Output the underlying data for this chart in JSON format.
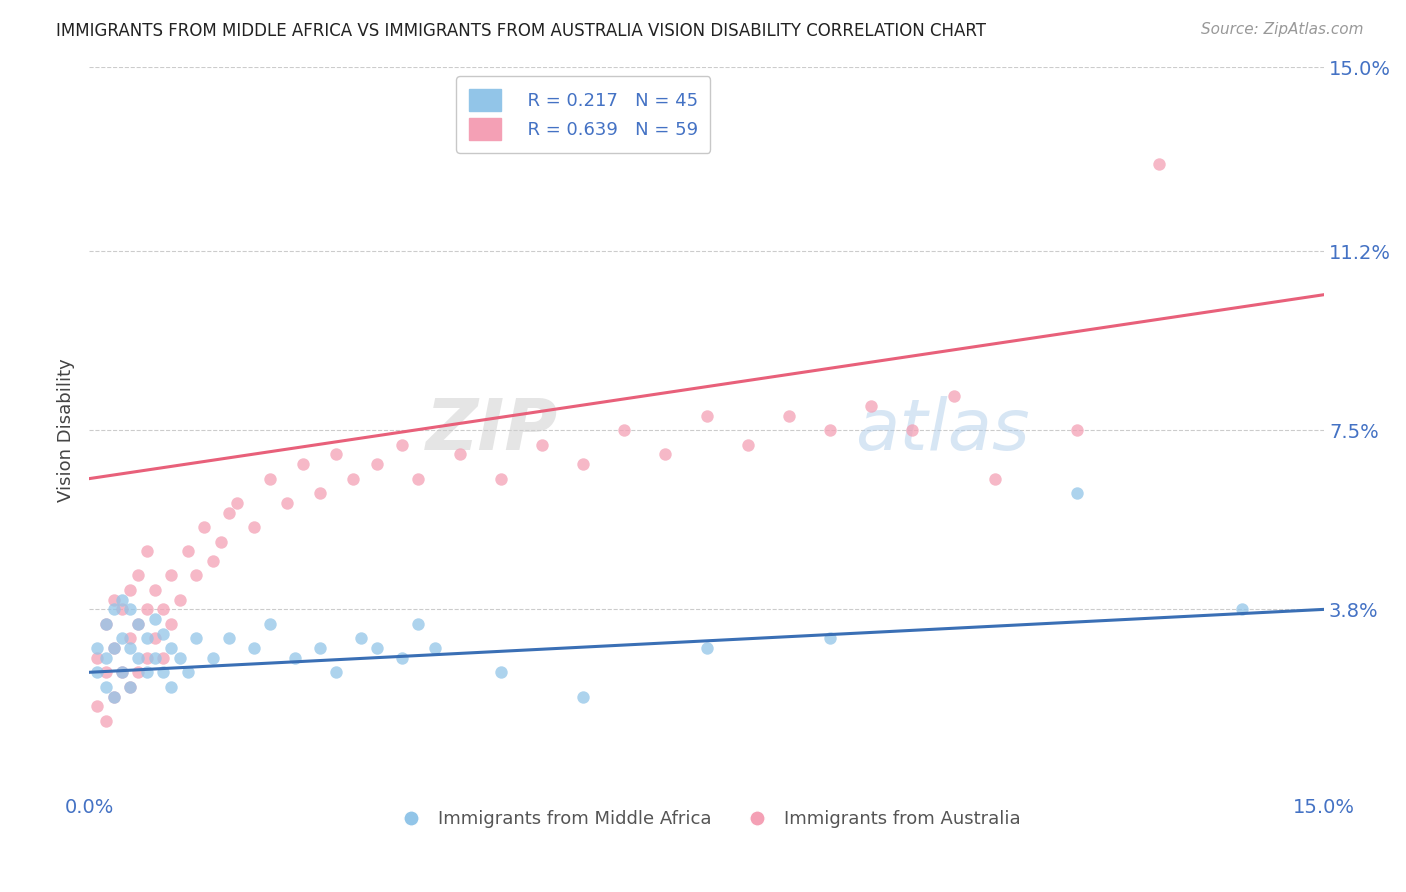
{
  "title": "IMMIGRANTS FROM MIDDLE AFRICA VS IMMIGRANTS FROM AUSTRALIA VISION DISABILITY CORRELATION CHART",
  "source": "Source: ZipAtlas.com",
  "ylabel": "Vision Disability",
  "xlim": [
    0.0,
    0.15
  ],
  "ylim": [
    0.0,
    0.15
  ],
  "yticks": [
    0.038,
    0.075,
    0.112,
    0.15
  ],
  "ytick_labels": [
    "3.8%",
    "7.5%",
    "11.2%",
    "15.0%"
  ],
  "blue_R": 0.217,
  "blue_N": 45,
  "pink_R": 0.639,
  "pink_N": 59,
  "blue_color": "#92C5E8",
  "pink_color": "#F4A0B5",
  "blue_line_color": "#3A6FB5",
  "pink_line_color": "#E8607A",
  "legend_label_blue": "Immigrants from Middle Africa",
  "legend_label_pink": "Immigrants from Australia",
  "blue_line": [
    0.0,
    0.15,
    0.025,
    0.038
  ],
  "pink_line": [
    0.0,
    0.15,
    0.065,
    0.103
  ],
  "blue_scatter_x": [
    0.001,
    0.001,
    0.002,
    0.002,
    0.002,
    0.003,
    0.003,
    0.003,
    0.004,
    0.004,
    0.004,
    0.005,
    0.005,
    0.005,
    0.006,
    0.006,
    0.007,
    0.007,
    0.008,
    0.008,
    0.009,
    0.009,
    0.01,
    0.01,
    0.011,
    0.012,
    0.013,
    0.015,
    0.017,
    0.02,
    0.022,
    0.025,
    0.028,
    0.03,
    0.033,
    0.035,
    0.038,
    0.04,
    0.042,
    0.05,
    0.06,
    0.075,
    0.09,
    0.12,
    0.14
  ],
  "blue_scatter_y": [
    0.025,
    0.03,
    0.022,
    0.028,
    0.035,
    0.02,
    0.03,
    0.038,
    0.025,
    0.032,
    0.04,
    0.022,
    0.03,
    0.038,
    0.028,
    0.035,
    0.025,
    0.032,
    0.028,
    0.036,
    0.025,
    0.033,
    0.022,
    0.03,
    0.028,
    0.025,
    0.032,
    0.028,
    0.032,
    0.03,
    0.035,
    0.028,
    0.03,
    0.025,
    0.032,
    0.03,
    0.028,
    0.035,
    0.03,
    0.025,
    0.02,
    0.03,
    0.032,
    0.062,
    0.038
  ],
  "pink_scatter_x": [
    0.001,
    0.001,
    0.002,
    0.002,
    0.002,
    0.003,
    0.003,
    0.003,
    0.004,
    0.004,
    0.005,
    0.005,
    0.005,
    0.006,
    0.006,
    0.006,
    0.007,
    0.007,
    0.007,
    0.008,
    0.008,
    0.009,
    0.009,
    0.01,
    0.01,
    0.011,
    0.012,
    0.013,
    0.014,
    0.015,
    0.016,
    0.017,
    0.018,
    0.02,
    0.022,
    0.024,
    0.026,
    0.028,
    0.03,
    0.032,
    0.035,
    0.038,
    0.04,
    0.045,
    0.05,
    0.055,
    0.06,
    0.065,
    0.07,
    0.075,
    0.08,
    0.085,
    0.09,
    0.095,
    0.1,
    0.105,
    0.11,
    0.12,
    0.13
  ],
  "pink_scatter_y": [
    0.018,
    0.028,
    0.015,
    0.025,
    0.035,
    0.02,
    0.03,
    0.04,
    0.025,
    0.038,
    0.022,
    0.032,
    0.042,
    0.025,
    0.035,
    0.045,
    0.028,
    0.038,
    0.05,
    0.032,
    0.042,
    0.028,
    0.038,
    0.035,
    0.045,
    0.04,
    0.05,
    0.045,
    0.055,
    0.048,
    0.052,
    0.058,
    0.06,
    0.055,
    0.065,
    0.06,
    0.068,
    0.062,
    0.07,
    0.065,
    0.068,
    0.072,
    0.065,
    0.07,
    0.065,
    0.072,
    0.068,
    0.075,
    0.07,
    0.078,
    0.072,
    0.078,
    0.075,
    0.08,
    0.075,
    0.082,
    0.065,
    0.075,
    0.13
  ]
}
